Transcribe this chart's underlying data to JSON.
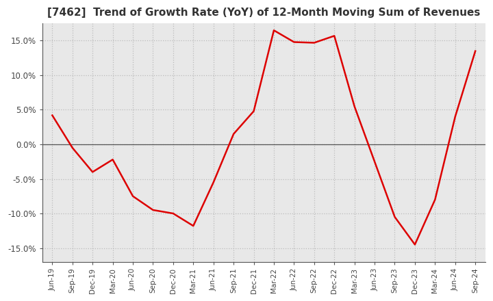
{
  "title": "[7462]  Trend of Growth Rate (YoY) of 12-Month Moving Sum of Revenues",
  "line_color": "#DD0000",
  "line_width": 1.8,
  "background_color": "#FFFFFF",
  "plot_bg_color": "#E8E8E8",
  "grid_color": "#BBBBBB",
  "spine_color": "#555555",
  "ylim": [
    -0.17,
    0.175
  ],
  "yticks": [
    -0.15,
    -0.1,
    -0.05,
    0.0,
    0.05,
    0.1,
    0.15
  ],
  "x_labels": [
    "Jun-19",
    "Sep-19",
    "Dec-19",
    "Mar-20",
    "Jun-20",
    "Sep-20",
    "Dec-20",
    "Mar-21",
    "Jun-21",
    "Sep-21",
    "Dec-21",
    "Mar-22",
    "Jun-22",
    "Sep-22",
    "Dec-22",
    "Mar-23",
    "Jun-23",
    "Sep-23",
    "Dec-23",
    "Mar-24",
    "Jun-24",
    "Sep-24"
  ],
  "values": [
    0.042,
    -0.005,
    -0.04,
    -0.022,
    -0.075,
    -0.095,
    -0.1,
    -0.118,
    -0.055,
    0.015,
    0.048,
    0.165,
    0.148,
    0.147,
    0.157,
    0.055,
    -0.025,
    -0.105,
    -0.145,
    -0.08,
    0.04,
    0.135
  ]
}
